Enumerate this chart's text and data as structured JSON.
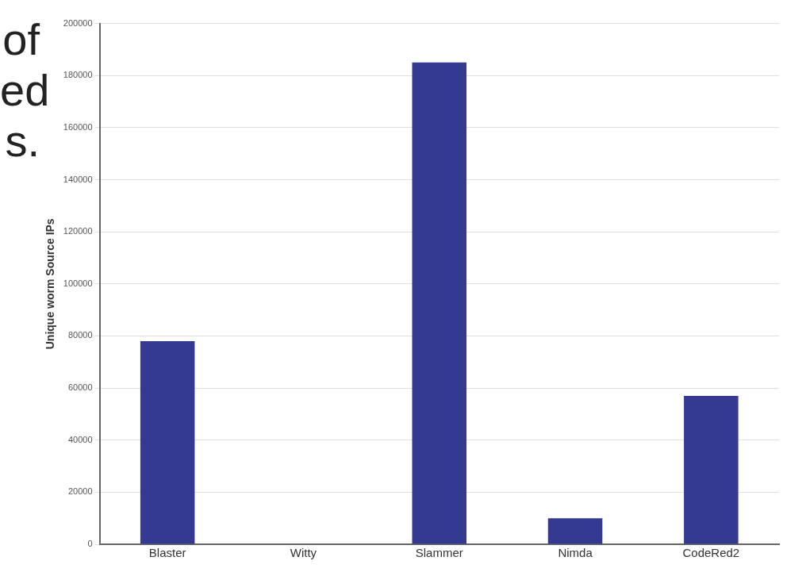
{
  "chart_data": {
    "type": "bar",
    "ylabel": "Unique worm Source IPs",
    "categories": [
      "Blaster",
      "Witty",
      "Slammer",
      "Nimda",
      "CodeRed2"
    ],
    "values": [
      78000,
      0,
      185000,
      10000,
      57000
    ],
    "color": "#343a92",
    "ylim": [
      0,
      200000
    ],
    "yticks": [
      0,
      20000,
      40000,
      60000,
      80000,
      100000,
      120000,
      140000,
      160000,
      180000,
      200000
    ],
    "grid": "y",
    "annotations": [
      "of",
      "ed",
      "s."
    ]
  }
}
